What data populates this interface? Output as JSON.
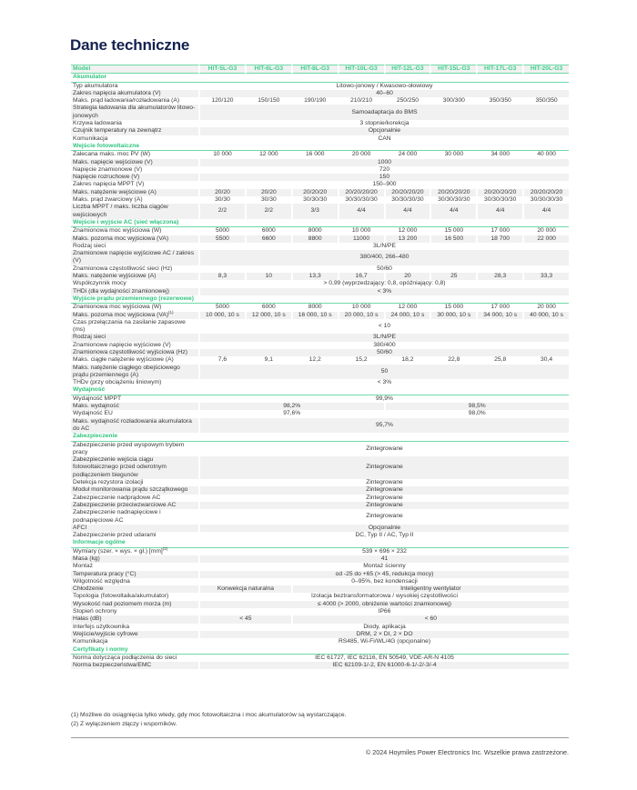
{
  "title": "Dane techniczne",
  "accent_color": "#3ccf8a",
  "title_color": "#14224f",
  "header": {
    "label": "Model",
    "models": [
      "HIT-5L-G3",
      "HIT-6L-G3",
      "HIT-8L-G3",
      "HIT-10L-G3",
      "HIT-12L-G3",
      "HIT-15L-G3",
      "HIT-17L-G3",
      "HIT-20L-G3"
    ]
  },
  "sections": [
    {
      "title": "Akumulator",
      "rows": [
        {
          "label": "Typ akumulatora",
          "cells": [
            {
              "t": "Litowo-jonowy / Kwasowo-ołowiowy",
              "s": 8
            }
          ]
        },
        {
          "label": "Zakres napięcia akumulatora (V)",
          "cells": [
            {
              "t": "40–60",
              "s": 8
            }
          ]
        },
        {
          "label": "Maks. prąd ładowania/rozładowania (A)",
          "cells": [
            {
              "t": "120/120",
              "s": 1
            },
            {
              "t": "150/150",
              "s": 1
            },
            {
              "t": "190/190",
              "s": 1
            },
            {
              "t": "210/210",
              "s": 1
            },
            {
              "t": "250/250",
              "s": 1
            },
            {
              "t": "300/300",
              "s": 1
            },
            {
              "t": "350/350",
              "s": 1
            },
            {
              "t": "350/350",
              "s": 1
            }
          ]
        },
        {
          "label": "Strategia ładowania dla akumulatorów litowo-jonowych",
          "cells": [
            {
              "t": "Samoadaptacja do BMS",
              "s": 8
            }
          ]
        },
        {
          "label": "Krzywa ładowania",
          "cells": [
            {
              "t": "3 stopnie/korekcja",
              "s": 8
            }
          ]
        },
        {
          "label": "Czujnik temperatury na zewnątrz",
          "cells": [
            {
              "t": "Opcjonalnie",
              "s": 8
            }
          ]
        },
        {
          "label": "Komunikacja",
          "cells": [
            {
              "t": "CAN",
              "s": 8
            }
          ]
        }
      ]
    },
    {
      "title": "Wejście fotowoltaiczne",
      "rows": [
        {
          "label": "Zalecana maks. moc PV (W)",
          "cells": [
            {
              "t": "10 000",
              "s": 1
            },
            {
              "t": "12 000",
              "s": 1
            },
            {
              "t": "16 000",
              "s": 1
            },
            {
              "t": "20 000",
              "s": 1
            },
            {
              "t": "24 000",
              "s": 1
            },
            {
              "t": "30 000",
              "s": 1
            },
            {
              "t": "34 000",
              "s": 1
            },
            {
              "t": "40 000",
              "s": 1
            }
          ]
        },
        {
          "label": "Maks. napięcie wejściowe (V)",
          "cells": [
            {
              "t": "1000",
              "s": 8
            }
          ]
        },
        {
          "label": "Napięcie znamionowe (V)",
          "cells": [
            {
              "t": "720",
              "s": 8
            }
          ]
        },
        {
          "label": "Napięcie rozruchowe (V)",
          "cells": [
            {
              "t": "150",
              "s": 8
            }
          ]
        },
        {
          "label": "Zakres napięcia MPPT (V)",
          "cells": [
            {
              "t": "150–900",
              "s": 8
            }
          ]
        },
        {
          "label": "Maks. natężenie wejściowe (A)",
          "cells": [
            {
              "t": "20/20",
              "s": 1
            },
            {
              "t": "20/20",
              "s": 1
            },
            {
              "t": "20/20/20",
              "s": 1
            },
            {
              "t": "20/20/20/20",
              "s": 1
            },
            {
              "t": "20/20/20/20",
              "s": 1
            },
            {
              "t": "20/20/20/20",
              "s": 1
            },
            {
              "t": "20/20/20/20",
              "s": 1
            },
            {
              "t": "20/20/20/20",
              "s": 1
            }
          ]
        },
        {
          "label": "Maks. prąd zwarciowy (A)",
          "cells": [
            {
              "t": "30/30",
              "s": 1
            },
            {
              "t": "30/30",
              "s": 1
            },
            {
              "t": "30/30/30",
              "s": 1
            },
            {
              "t": "30/30/30/30",
              "s": 1
            },
            {
              "t": "30/30/30/30",
              "s": 1
            },
            {
              "t": "30/30/30/30",
              "s": 1
            },
            {
              "t": "30/30/30/30",
              "s": 1
            },
            {
              "t": "30/30/30/30",
              "s": 1
            }
          ]
        },
        {
          "label": "Liczba MPPT / maks. liczba ciągów wejściowych",
          "cells": [
            {
              "t": "2/2",
              "s": 1
            },
            {
              "t": "2/2",
              "s": 1
            },
            {
              "t": "3/3",
              "s": 1
            },
            {
              "t": "4/4",
              "s": 1
            },
            {
              "t": "4/4",
              "s": 1
            },
            {
              "t": "4/4",
              "s": 1
            },
            {
              "t": "4/4",
              "s": 1
            },
            {
              "t": "4/4",
              "s": 1
            }
          ]
        }
      ]
    },
    {
      "title": "Wejście i wyjście AC (sieć włączona)",
      "rows": [
        {
          "label": "Znamionowa moc wyjściowa (W)",
          "cells": [
            {
              "t": "5000",
              "s": 1
            },
            {
              "t": "6000",
              "s": 1
            },
            {
              "t": "8000",
              "s": 1
            },
            {
              "t": "10 000",
              "s": 1
            },
            {
              "t": "12 000",
              "s": 1
            },
            {
              "t": "15 000",
              "s": 1
            },
            {
              "t": "17 000",
              "s": 1
            },
            {
              "t": "20 000",
              "s": 1
            }
          ]
        },
        {
          "label": "Maks. pozorna moc wyjściowa (VA)",
          "cells": [
            {
              "t": "5500",
              "s": 1
            },
            {
              "t": "6600",
              "s": 1
            },
            {
              "t": "8800",
              "s": 1
            },
            {
              "t": "11000",
              "s": 1
            },
            {
              "t": "13 200",
              "s": 1
            },
            {
              "t": "16 500",
              "s": 1
            },
            {
              "t": "18 700",
              "s": 1
            },
            {
              "t": "22 000",
              "s": 1
            }
          ]
        },
        {
          "label": "Rodzaj sieci",
          "cells": [
            {
              "t": "3L/N/PE",
              "s": 8
            }
          ]
        },
        {
          "label": "Znamionowe napięcie wyjściowe AC / zakres (V)",
          "cells": [
            {
              "t": "380/400, 266–480",
              "s": 8
            }
          ]
        },
        {
          "label": "Znamionowa częstotliwość sieci (Hz)",
          "cells": [
            {
              "t": "50/60",
              "s": 8
            }
          ]
        },
        {
          "label": "Maks. natężenie wyjściowe (A)",
          "cells": [
            {
              "t": "8,3",
              "s": 1
            },
            {
              "t": "10",
              "s": 1
            },
            {
              "t": "13,3",
              "s": 1
            },
            {
              "t": "16,7",
              "s": 1
            },
            {
              "t": "20",
              "s": 1
            },
            {
              "t": "25",
              "s": 1
            },
            {
              "t": "28,3",
              "s": 1
            },
            {
              "t": "33,3",
              "s": 1
            }
          ]
        },
        {
          "label": "Współczynnik mocy",
          "cells": [
            {
              "t": "> 0,99 (wyprzedzający: 0,8, opóźniający: 0,8)",
              "s": 8
            }
          ]
        },
        {
          "label": "THDi (dla wydajności znamionowej)",
          "cells": [
            {
              "t": "< 3%",
              "s": 8
            }
          ]
        }
      ]
    },
    {
      "title": "Wyjście prądu przemiennego (rezerwowe)",
      "rows": [
        {
          "label": "Znamionowa moc wyjściowa (W)",
          "cells": [
            {
              "t": "5000",
              "s": 1
            },
            {
              "t": "6000",
              "s": 1
            },
            {
              "t": "8000",
              "s": 1
            },
            {
              "t": "10 000",
              "s": 1
            },
            {
              "t": "12 000",
              "s": 1
            },
            {
              "t": "15 000",
              "s": 1
            },
            {
              "t": "17 000",
              "s": 1
            },
            {
              "t": "20 000",
              "s": 1
            }
          ]
        },
        {
          "label": "Maks. pozorna moc wyjściowa (VA)",
          "sup": "(1)",
          "cells": [
            {
              "t": "10 000, 10 s",
              "s": 1
            },
            {
              "t": "12 000, 10 s",
              "s": 1
            },
            {
              "t": "16 000, 10 s",
              "s": 1
            },
            {
              "t": "20 000, 10 s",
              "s": 1
            },
            {
              "t": "24 000, 10 s",
              "s": 1
            },
            {
              "t": "30 000, 10 s",
              "s": 1
            },
            {
              "t": "34 000, 10 s",
              "s": 1
            },
            {
              "t": "40 000, 10 s",
              "s": 1
            }
          ]
        },
        {
          "label": "Czas przełączania na zasilanie zapasowe (ms)",
          "cells": [
            {
              "t": "< 10",
              "s": 8
            }
          ]
        },
        {
          "label": "Rodzaj sieci",
          "cells": [
            {
              "t": "3L/N/PE",
              "s": 8
            }
          ]
        },
        {
          "label": "Znamionowe napięcie wyjściowe (V)",
          "cells": [
            {
              "t": "380/400",
              "s": 8
            }
          ]
        },
        {
          "label": "Znamionowa częstotliwość wyjściowa (Hz)",
          "cells": [
            {
              "t": "50/60",
              "s": 8
            }
          ]
        },
        {
          "label": "Maks. ciągłe natężenie wyjściowe (A)",
          "cells": [
            {
              "t": "7,6",
              "s": 1
            },
            {
              "t": "9,1",
              "s": 1
            },
            {
              "t": "12,2",
              "s": 1
            },
            {
              "t": "15,2",
              "s": 1
            },
            {
              "t": "18,2",
              "s": 1
            },
            {
              "t": "22,8",
              "s": 1
            },
            {
              "t": "25,8",
              "s": 1
            },
            {
              "t": "30,4",
              "s": 1
            }
          ]
        },
        {
          "label": "Maks. natężenie ciągłego obejściowego prądu przemiennego (A)",
          "cells": [
            {
              "t": "50",
              "s": 8
            }
          ]
        },
        {
          "label": "THDv (przy obciążeniu liniowym)",
          "cells": [
            {
              "t": "< 3%",
              "s": 8
            }
          ]
        }
      ]
    },
    {
      "title": "Wydajność",
      "rows": [
        {
          "label": "Wydajność MPPT",
          "cells": [
            {
              "t": "99,9%",
              "s": 8
            }
          ]
        },
        {
          "label": "Maks. wydajność",
          "cells": [
            {
              "t": "98,2%",
              "s": 4
            },
            {
              "t": "98,5%",
              "s": 4
            }
          ]
        },
        {
          "label": "Wydajność EU",
          "cells": [
            {
              "t": "97,6%",
              "s": 4
            },
            {
              "t": "98,0%",
              "s": 4
            }
          ]
        },
        {
          "label": "Maks. wydajność rozładowania akumulatora do AC",
          "cells": [
            {
              "t": "95,7%",
              "s": 8
            }
          ]
        }
      ]
    },
    {
      "title": "Zabezpieczenie",
      "rows": [
        {
          "label": "Zabezpieczenie przed wyspowym trybem pracy",
          "cells": [
            {
              "t": "Zintegrowane",
              "s": 8
            }
          ]
        },
        {
          "label": "Zabezpieczenie wejścia ciągu fotowoltaicznego przed odwrotnym podłączeniem biegunów",
          "cells": [
            {
              "t": "Zintegrowane",
              "s": 8
            }
          ]
        },
        {
          "label": "Detekcja rezystora izolacji",
          "cells": [
            {
              "t": "Zintegrowane",
              "s": 8
            }
          ]
        },
        {
          "label": "Moduł monitorowania prądu szczątkowego",
          "cells": [
            {
              "t": "Zintegrowane",
              "s": 8
            }
          ]
        },
        {
          "label": "Zabezpieczenie nadprądowe AC",
          "cells": [
            {
              "t": "Zintegrowane",
              "s": 8
            }
          ]
        },
        {
          "label": "Zabezpieczenie przeciwzwarciowe AC",
          "cells": [
            {
              "t": "Zintegrowane",
              "s": 8
            }
          ]
        },
        {
          "label": "Zabezpieczenie nadnapięciowe i podnapięciowe AC",
          "cells": [
            {
              "t": "Zintegrowane",
              "s": 8
            }
          ]
        },
        {
          "label": "AFCI",
          "cells": [
            {
              "t": "Opcjonalnie",
              "s": 8
            }
          ]
        },
        {
          "label": "Zabezpieczenie przed udarami",
          "cells": [
            {
              "t": "DC, Typ II / AC, Typ II",
              "s": 8
            }
          ]
        }
      ]
    },
    {
      "title": "Informacje ogólne",
      "rows": [
        {
          "label": "Wymiary (szer. × wys. × gł.) [mm]",
          "sup": "(2)",
          "cells": [
            {
              "t": "539 × 696 × 232",
              "s": 8
            }
          ]
        },
        {
          "label": "Masa (kg)",
          "cells": [
            {
              "t": "41",
              "s": 8
            }
          ]
        },
        {
          "label": "Montaż",
          "cells": [
            {
              "t": "Montaż ścienny",
              "s": 8
            }
          ]
        },
        {
          "label": "Temperatura pracy (°C)",
          "cells": [
            {
              "t": "od -25 do +65 (> 45, redukcja mocy)",
              "s": 8
            }
          ]
        },
        {
          "label": "Wilgotność względna",
          "cells": [
            {
              "t": "0–95%, bez kondensacji",
              "s": 8
            }
          ]
        },
        {
          "label": "Chłodzenie",
          "cells": [
            {
              "t": "Konwekcja naturalna",
              "s": 2
            },
            {
              "t": "Inteligentny wentylator",
              "s": 6
            }
          ]
        },
        {
          "label": "Topologia (fotowoltaika/akumulator)",
          "cells": [
            {
              "t": "Izolacja beztransformatorowa / wysokiej częstotliwości",
              "s": 8
            }
          ]
        },
        {
          "label": "Wysokość nad poziomem morza (m)",
          "cells": [
            {
              "t": "≤ 4000 (> 2000, obniżenie wartości znamionowej)",
              "s": 8
            }
          ]
        },
        {
          "label": "Stopień ochrony",
          "cells": [
            {
              "t": "IP66",
              "s": 8
            }
          ]
        },
        {
          "label": "Hałas (dB)",
          "cells": [
            {
              "t": "< 45",
              "s": 2
            },
            {
              "t": "< 60",
              "s": 6
            }
          ]
        },
        {
          "label": "Interfejs użytkownika",
          "cells": [
            {
              "t": "Diody, aplikacja",
              "s": 8
            }
          ]
        },
        {
          "label": "Wejście/wyjście cyfrowe",
          "cells": [
            {
              "t": "DRM, 2 × DI, 2 × DO",
              "s": 8
            }
          ]
        },
        {
          "label": "Komunikacja",
          "cells": [
            {
              "t": "RS485, Wi-Fi/WL/4G (opcjonalne)",
              "s": 8
            }
          ]
        }
      ]
    },
    {
      "title": "Certyfikaty i normy",
      "rows": [
        {
          "label": "Norma dotycząca podłączenia do sieci",
          "cells": [
            {
              "t": "IEC 61727, IEC 62116, EN 50549, VDE-AR-N 4105",
              "s": 8
            }
          ]
        },
        {
          "label": "Norma bezpieczeństwa/EMC",
          "cells": [
            {
              "t": "IEC 62109-1/-2, EN 61000-6-1/-2/-3/-4",
              "s": 8
            }
          ]
        }
      ]
    }
  ],
  "footnotes": [
    "(1) Możliwe do osiągnięcia tylko wtedy, gdy moc fotowoltaiczna i moc akumulatorów są wystarczające.",
    "(2) Z wyłączeniem złączy i wsporników."
  ],
  "copyright": "© 2024 Hoymiles Power Electronics Inc. Wszelkie prawa zastrzeżone."
}
